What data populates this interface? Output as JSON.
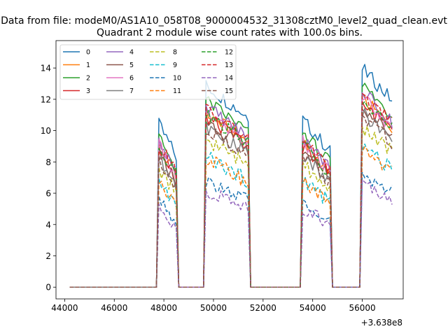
{
  "suptitle": "Data from file: modeM0/AS1A10_058T08_9000004532_31308cztM0_level2_quad_clean.evt",
  "chart_data": {
    "type": "line",
    "title": "Quadrant 2 module wise count rates with 100.0s bins.",
    "xlabel": "",
    "ylabel": "",
    "x_offset_label": "+3.638e8",
    "xlim": [
      43650,
      57650
    ],
    "ylim": [
      -0.75,
      15.75
    ],
    "x_ticks": [
      44000,
      46000,
      48000,
      50000,
      52000,
      54000,
      56000
    ],
    "y_ticks": [
      0,
      2,
      4,
      6,
      8,
      10,
      12,
      14
    ],
    "grid": false,
    "legend": {
      "placement": "upper-left",
      "columns": 4
    },
    "x": [
      44200,
      44300,
      44400,
      44500,
      44600,
      44700,
      44800,
      44900,
      45000,
      45100,
      45200,
      45300,
      45400,
      45500,
      45600,
      45700,
      45800,
      45900,
      46000,
      46100,
      46200,
      46300,
      46400,
      46500,
      46600,
      46700,
      46800,
      46900,
      47000,
      47100,
      47200,
      47300,
      47400,
      47500,
      47600,
      47700,
      47800,
      47900,
      48000,
      48100,
      48200,
      48300,
      48400,
      48500,
      48600,
      48700,
      48800,
      48900,
      49000,
      49100,
      49200,
      49300,
      49400,
      49500,
      49600,
      49700,
      49800,
      49900,
      50000,
      50100,
      50200,
      50300,
      50400,
      50500,
      50600,
      50700,
      50800,
      50900,
      51000,
      51100,
      51200,
      51300,
      51400,
      51500,
      51600,
      51700,
      51800,
      51900,
      52000,
      52100,
      52200,
      52300,
      52400,
      52500,
      52600,
      52700,
      52800,
      52900,
      53000,
      53100,
      53200,
      53300,
      53400,
      53500,
      53600,
      53700,
      53800,
      53900,
      54000,
      54100,
      54200,
      54300,
      54400,
      54500,
      54600,
      54700,
      54800,
      54900,
      55000,
      55100,
      55200,
      55300,
      55400,
      55500,
      55600,
      55700,
      55800,
      55900,
      56000,
      56100,
      56200,
      56300,
      56400,
      56500,
      56600,
      56700,
      56800,
      56900,
      57000,
      57100,
      57200
    ],
    "segments": [
      [
        44200,
        45500,
        45600
      ],
      [
        47700,
        47800,
        48500,
        48600
      ],
      [
        49600,
        49700,
        51400,
        51500
      ],
      [
        53500,
        53600,
        54700,
        54800
      ],
      [
        55900,
        56000,
        57200,
        57200
      ]
    ],
    "series": [
      {
        "name": "0",
        "color": "#1f77b4",
        "dash": false,
        "level": 10.9,
        "tilt": -1.0
      },
      {
        "name": "1",
        "color": "#ff7f0e",
        "dash": false,
        "level": 9.4,
        "tilt": -0.9
      },
      {
        "name": "2",
        "color": "#2ca02c",
        "dash": false,
        "level": 10.1,
        "tilt": -1.0
      },
      {
        "name": "3",
        "color": "#d62728",
        "dash": false,
        "level": 9.2,
        "tilt": -0.9
      },
      {
        "name": "4",
        "color": "#9467bd",
        "dash": false,
        "level": 9.8,
        "tilt": -1.0
      },
      {
        "name": "5",
        "color": "#8c564b",
        "dash": false,
        "level": 9.0,
        "tilt": -0.9
      },
      {
        "name": "6",
        "color": "#e377c2",
        "dash": false,
        "level": 9.5,
        "tilt": -1.0
      },
      {
        "name": "7",
        "color": "#7f7f7f",
        "dash": false,
        "level": 8.7,
        "tilt": -0.9
      },
      {
        "name": "8",
        "color": "#bcbd22",
        "dash": true,
        "level": 8.0,
        "tilt": -0.8
      },
      {
        "name": "9",
        "color": "#17becf",
        "dash": true,
        "level": 7.1,
        "tilt": -0.8
      },
      {
        "name": "10",
        "color": "#1f77b4",
        "dash": true,
        "level": 5.7,
        "tilt": -0.6
      },
      {
        "name": "11",
        "color": "#ff7f0e",
        "dash": true,
        "level": 7.0,
        "tilt": -0.8
      },
      {
        "name": "12",
        "color": "#2ca02c",
        "dash": true,
        "level": 9.3,
        "tilt": -0.9
      },
      {
        "name": "13",
        "color": "#d62728",
        "dash": true,
        "level": 9.6,
        "tilt": -0.9
      },
      {
        "name": "14",
        "color": "#9467bd",
        "dash": true,
        "level": 5.2,
        "tilt": -0.5
      },
      {
        "name": "15",
        "color": "#8c564b",
        "dash": true,
        "level": 8.6,
        "tilt": -0.9
      }
    ]
  }
}
